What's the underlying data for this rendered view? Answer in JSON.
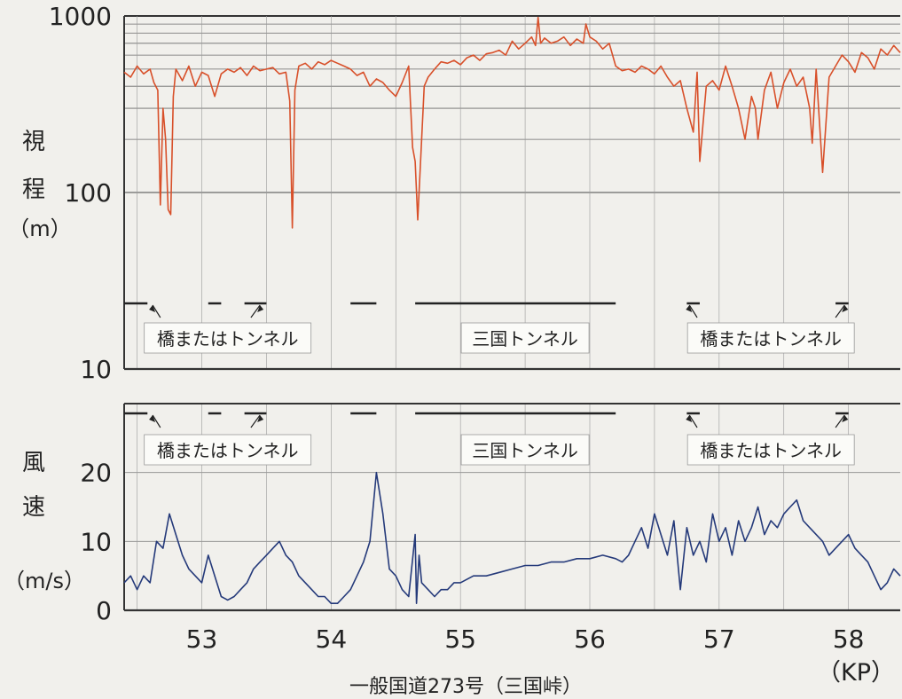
{
  "chart_data": [
    {
      "type": "line",
      "ylabel": "視程(m)",
      "ylabel_lines": [
        "視",
        "程",
        "（m）"
      ],
      "yscale": "log",
      "ylim": [
        10,
        1000
      ],
      "yticks": [
        {
          "value": 10,
          "label": "10"
        },
        {
          "value": 100,
          "label": "100"
        },
        {
          "value": 1000,
          "label": "1000"
        }
      ],
      "xlim": [
        52.4,
        58.4
      ],
      "grid": true,
      "line_color": "#d8502a",
      "annotations": [
        {
          "text": "橋またはトンネル",
          "x": 53.2
        },
        {
          "text": "三国トンネル",
          "x": 55.5
        },
        {
          "text": "橋またはトンネル",
          "x": 57.4
        }
      ],
      "segments": [
        [
          52.4,
          52.58
        ],
        [
          53.05,
          53.15
        ],
        [
          53.33,
          53.5
        ],
        [
          54.15,
          54.35
        ],
        [
          54.65,
          56.2
        ],
        [
          56.75,
          56.85
        ],
        [
          57.9,
          58.0
        ]
      ],
      "arrows": [
        {
          "from": 52.68,
          "to": 52.62
        },
        {
          "from": 53.38,
          "to": 53.45
        },
        {
          "from": 56.83,
          "to": 56.77
        },
        {
          "from": 57.9,
          "to": 57.97
        }
      ],
      "series": [
        {
          "x": [
            52.4,
            52.45,
            52.5,
            52.55,
            52.6,
            52.63,
            52.66,
            52.68,
            52.7,
            52.72,
            52.74,
            52.76,
            52.78,
            52.8,
            52.85,
            52.9,
            52.95,
            53.0,
            53.05,
            53.1,
            53.15,
            53.2,
            53.25,
            53.3,
            53.35,
            53.4,
            53.45,
            53.5,
            53.55,
            53.6,
            53.65,
            53.68,
            53.7,
            53.72,
            53.75,
            53.8,
            53.85,
            53.9,
            53.95,
            54.0,
            54.05,
            54.1,
            54.15,
            54.2,
            54.25,
            54.3,
            54.35,
            54.4,
            54.45,
            54.5,
            54.55,
            54.6,
            54.63,
            54.65,
            54.67,
            54.7,
            54.72,
            54.75,
            54.8,
            54.85,
            54.9,
            54.95,
            55.0,
            55.05,
            55.1,
            55.15,
            55.2,
            55.25,
            55.3,
            55.35,
            55.4,
            55.45,
            55.5,
            55.55,
            55.58,
            55.6,
            55.62,
            55.65,
            55.7,
            55.75,
            55.8,
            55.85,
            55.9,
            55.95,
            55.97,
            56.0,
            56.05,
            56.1,
            56.15,
            56.2,
            56.25,
            56.3,
            56.35,
            56.4,
            56.45,
            56.5,
            56.55,
            56.6,
            56.65,
            56.7,
            56.75,
            56.8,
            56.83,
            56.85,
            56.9,
            56.95,
            57.0,
            57.05,
            57.1,
            57.15,
            57.2,
            57.25,
            57.28,
            57.3,
            57.35,
            57.4,
            57.45,
            57.5,
            57.55,
            57.6,
            57.65,
            57.7,
            57.72,
            57.75,
            57.8,
            57.85,
            57.9,
            57.95,
            58.0,
            58.05,
            58.1,
            58.15,
            58.2,
            58.25,
            58.3,
            58.35,
            58.4
          ],
          "values": [
            480,
            450,
            520,
            470,
            500,
            420,
            380,
            85,
            300,
            200,
            80,
            75,
            350,
            500,
            430,
            520,
            400,
            480,
            460,
            350,
            470,
            500,
            480,
            510,
            460,
            520,
            490,
            500,
            510,
            470,
            480,
            330,
            63,
            380,
            520,
            540,
            500,
            550,
            530,
            560,
            540,
            520,
            500,
            460,
            480,
            400,
            440,
            420,
            380,
            350,
            420,
            520,
            180,
            150,
            70,
            200,
            400,
            450,
            500,
            550,
            540,
            560,
            530,
            580,
            600,
            560,
            610,
            620,
            640,
            600,
            720,
            650,
            700,
            760,
            680,
            980,
            700,
            750,
            700,
            720,
            760,
            680,
            740,
            700,
            900,
            760,
            720,
            650,
            700,
            520,
            490,
            500,
            480,
            520,
            500,
            470,
            520,
            450,
            400,
            430,
            300,
            220,
            480,
            150,
            400,
            430,
            380,
            520,
            400,
            300,
            200,
            350,
            300,
            200,
            380,
            480,
            300,
            420,
            500,
            400,
            450,
            300,
            190,
            500,
            130,
            450,
            520,
            600,
            550,
            480,
            620,
            580,
            500,
            650,
            600,
            680,
            620
          ]
        }
      ]
    },
    {
      "type": "line",
      "ylabel": "風速(m/s)",
      "ylabel_lines": [
        "風",
        "速",
        "（m/s）"
      ],
      "ylim": [
        0,
        30
      ],
      "yticks": [
        {
          "value": 0,
          "label": "0"
        },
        {
          "value": 10,
          "label": "10"
        },
        {
          "value": 20,
          "label": "20"
        }
      ],
      "xlim": [
        52.4,
        58.4
      ],
      "xticks": [
        {
          "value": 53,
          "label": "53"
        },
        {
          "value": 54,
          "label": "54"
        },
        {
          "value": 55,
          "label": "55"
        },
        {
          "value": 56,
          "label": "56"
        },
        {
          "value": 57,
          "label": "57"
        },
        {
          "value": 58,
          "label": "58"
        }
      ],
      "xunit": "（KP）",
      "xlabel": "一般国道273号（三国峠）",
      "grid": true,
      "line_color": "#253a7a",
      "annotations": [
        {
          "text": "橋またはトンネル",
          "x": 53.2
        },
        {
          "text": "三国トンネル",
          "x": 55.5
        },
        {
          "text": "橋またはトンネル",
          "x": 57.4
        }
      ],
      "segments": [
        [
          52.4,
          52.58
        ],
        [
          53.05,
          53.15
        ],
        [
          53.33,
          53.5
        ],
        [
          54.15,
          54.35
        ],
        [
          54.65,
          56.2
        ],
        [
          56.75,
          56.85
        ],
        [
          57.9,
          58.0
        ]
      ],
      "arrows": [
        {
          "from": 52.68,
          "to": 52.62
        },
        {
          "from": 53.38,
          "to": 53.45
        },
        {
          "from": 56.83,
          "to": 56.77
        },
        {
          "from": 57.9,
          "to": 57.97
        }
      ],
      "series": [
        {
          "x": [
            52.4,
            52.45,
            52.5,
            52.55,
            52.6,
            52.65,
            52.7,
            52.75,
            52.8,
            52.85,
            52.9,
            52.95,
            53.0,
            53.05,
            53.1,
            53.15,
            53.2,
            53.25,
            53.3,
            53.35,
            53.4,
            53.45,
            53.5,
            53.55,
            53.6,
            53.65,
            53.7,
            53.75,
            53.8,
            53.85,
            53.9,
            53.95,
            54.0,
            54.05,
            54.1,
            54.15,
            54.2,
            54.25,
            54.3,
            54.35,
            54.4,
            54.45,
            54.5,
            54.55,
            54.6,
            54.65,
            54.66,
            54.68,
            54.7,
            54.75,
            54.8,
            54.85,
            54.9,
            54.95,
            55.0,
            55.1,
            55.2,
            55.3,
            55.4,
            55.5,
            55.6,
            55.7,
            55.8,
            55.9,
            56.0,
            56.1,
            56.2,
            56.25,
            56.3,
            56.35,
            56.4,
            56.45,
            56.5,
            56.55,
            56.6,
            56.65,
            56.7,
            56.75,
            56.8,
            56.85,
            56.9,
            56.95,
            57.0,
            57.05,
            57.1,
            57.15,
            57.2,
            57.25,
            57.3,
            57.35,
            57.4,
            57.45,
            57.5,
            57.55,
            57.6,
            57.65,
            57.7,
            57.75,
            57.8,
            57.85,
            57.9,
            57.95,
            58.0,
            58.05,
            58.1,
            58.15,
            58.2,
            58.25,
            58.3,
            58.35,
            58.4
          ],
          "values": [
            4,
            5,
            3,
            5,
            4,
            10,
            9,
            14,
            11,
            8,
            6,
            5,
            4,
            8,
            5,
            2,
            1.5,
            2,
            3,
            4,
            6,
            7,
            8,
            9,
            10,
            8,
            7,
            5,
            4,
            3,
            2,
            2,
            1,
            1,
            2,
            3,
            5,
            7,
            10,
            20,
            14,
            6,
            5,
            3,
            2,
            11,
            1,
            8,
            4,
            3,
            2,
            3,
            3,
            4,
            4,
            5,
            5,
            5.5,
            6,
            6.5,
            6.5,
            7,
            7,
            7.5,
            7.5,
            8,
            7.5,
            7,
            8,
            10,
            12,
            9,
            14,
            11,
            8,
            13,
            3,
            12,
            8,
            10,
            7,
            14,
            10,
            12,
            8,
            13,
            10,
            12,
            15,
            11,
            13,
            12,
            14,
            15,
            16,
            13,
            12,
            11,
            10,
            8,
            9,
            10,
            11,
            9,
            8,
            7,
            5,
            3,
            4,
            6,
            5
          ]
        }
      ]
    }
  ]
}
